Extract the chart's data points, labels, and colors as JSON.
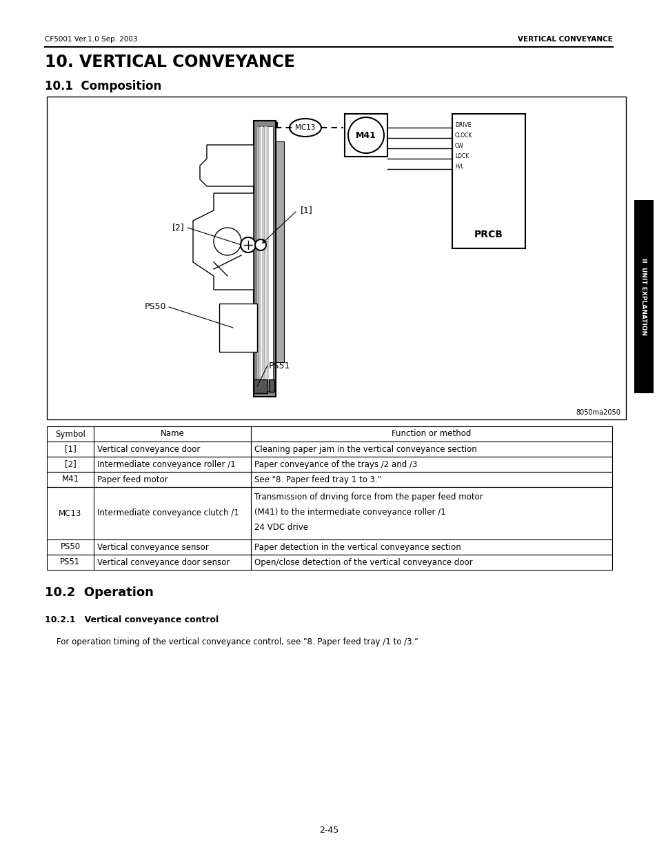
{
  "header_left": "CF5001 Ver.1.0 Sep. 2003",
  "header_right": "VERTICAL CONVEYANCE",
  "title": "10. VERTICAL CONVEYANCE",
  "section1": "10.1  Composition",
  "section2": "10.2  Operation",
  "subsection": "10.2.1   Vertical conveyance control",
  "operation_text": "For operation timing of the vertical conveyance control, see \"8. Paper feed tray /1 to /3.\"",
  "diagram_label": "8050ma2050",
  "diagram_note_mc13": "MC13",
  "diagram_note_m41": "M41",
  "diagram_note_prcb": "PRCB",
  "diagram_drive_labels": [
    "DRIVE",
    "CLOCK",
    "CW",
    "LOCK",
    "H/L"
  ],
  "diagram_note_1": "[1]",
  "diagram_note_2": "[2]",
  "diagram_note_ps50": "PS50",
  "diagram_note_ps51": "PS51",
  "table_headers": [
    "Symbol",
    "Name",
    "Function or method"
  ],
  "table_rows": [
    [
      "[1]",
      "Vertical conveyance door",
      "Cleaning paper jam in the vertical conveyance section"
    ],
    [
      "[2]",
      "Intermediate conveyance roller /1",
      "Paper conveyance of the trays /2 and /3"
    ],
    [
      "M41",
      "Paper feed motor",
      "See \"8. Paper feed tray 1 to 3.\""
    ],
    [
      "MC13",
      "Intermediate conveyance clutch /1",
      "Transmission of driving force from the paper feed motor\n(M41) to the intermediate conveyance roller /1\n24 VDC drive"
    ],
    [
      "PS50",
      "Vertical conveyance sensor",
      "Paper detection in the vertical conveyance section"
    ],
    [
      "PS51",
      "Vertical conveyance door sensor",
      "Open/close detection of the vertical conveyance door"
    ]
  ],
  "page_number": "2-45",
  "side_tab": "II  UNIT EXPLANATION",
  "bg_color": "#ffffff",
  "line_color": "#000000",
  "tab_bg": "#000000",
  "tab_text": "#ffffff"
}
